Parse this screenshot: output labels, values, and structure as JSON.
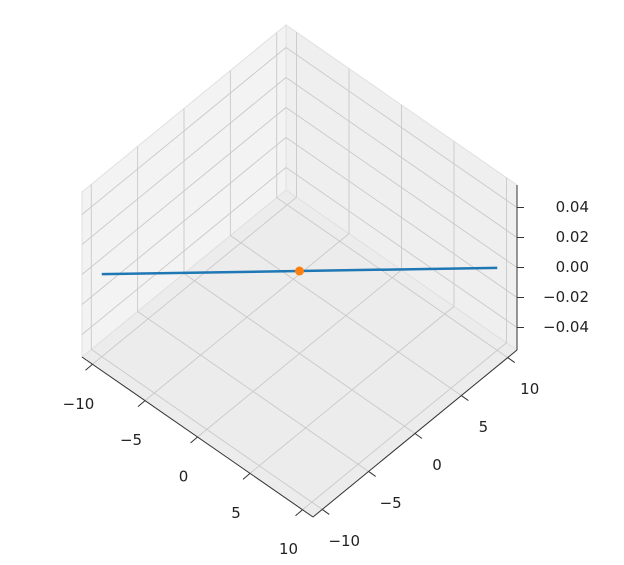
{
  "chart_data": {
    "type": "line3d",
    "series": [
      {
        "color": "#1f77b4",
        "x": [
          -10,
          10
        ],
        "y": [
          -10,
          10
        ],
        "z": [
          0,
          0
        ]
      }
    ],
    "points": {
      "color": "#ff7f0e",
      "x": [
        0
      ],
      "y": [
        0
      ],
      "z": [
        0
      ]
    },
    "xlim": [
      -11,
      11
    ],
    "ylim": [
      -11,
      11
    ],
    "zlim": [
      -0.055,
      0.055
    ],
    "xticks": [
      {
        "value": -10,
        "label": "−10"
      },
      {
        "value": -5,
        "label": "−5"
      },
      0,
      5,
      10
    ],
    "yticks": [
      {
        "value": -10,
        "label": "−10"
      },
      {
        "value": -5,
        "label": "−5"
      },
      0,
      5,
      10
    ],
    "zticks": [
      {
        "value": -0.04,
        "label": "−0.04"
      },
      {
        "value": -0.02,
        "label": "−0.02"
      },
      {
        "value": 0,
        "label": "0.00"
      },
      {
        "value": 0.02,
        "label": "0.02"
      },
      {
        "value": 0.04,
        "label": "0.04"
      }
    ],
    "grid": true
  }
}
